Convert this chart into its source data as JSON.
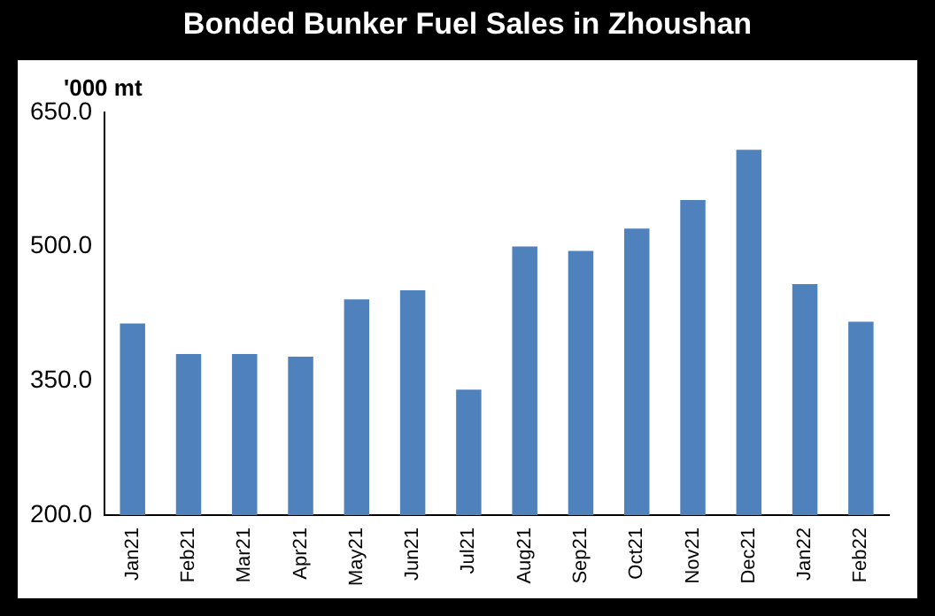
{
  "chart_data": {
    "type": "bar",
    "title": "Bonded Bunker Fuel Sales in Zhoushan",
    "ylabel": "'000 mt",
    "categories": [
      "Jan21",
      "Feb21",
      "Mar21",
      "Apr21",
      "May21",
      "Jun21",
      "Jul21",
      "Aug21",
      "Sep21",
      "Oct21",
      "Nov21",
      "Dec21",
      "Jan22",
      "Feb22"
    ],
    "values": [
      414,
      380,
      380,
      377,
      441,
      451,
      340,
      500,
      495,
      520,
      552,
      608,
      458,
      416
    ],
    "color": "#4f81bd",
    "ylim": [
      200,
      650
    ],
    "yticks": [
      {
        "value": 200,
        "label": "200.0"
      },
      {
        "value": 350,
        "label": "350.0"
      },
      {
        "value": 500,
        "label": "500.0"
      },
      {
        "value": 650,
        "label": "650.0"
      }
    ],
    "grid": false,
    "legend": false
  }
}
